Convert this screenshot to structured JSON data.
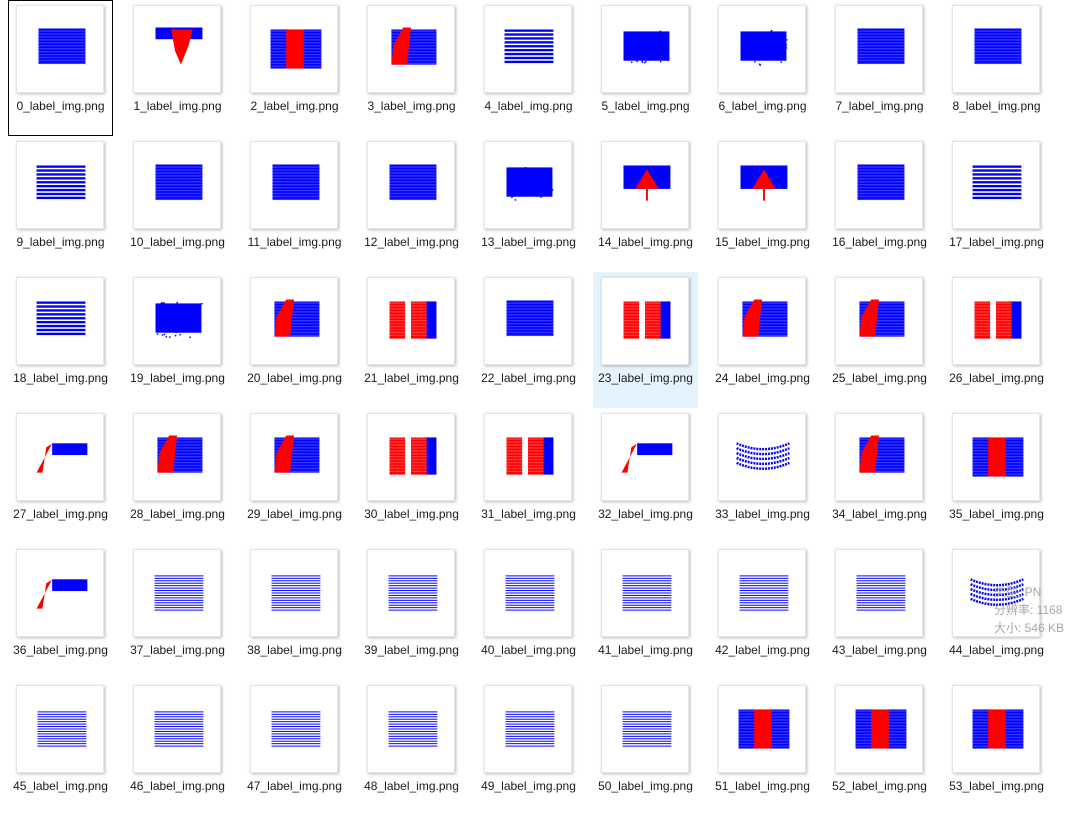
{
  "files": [
    {
      "name": "0_label_img.png",
      "pattern": "blue_rect",
      "selected": true
    },
    {
      "name": "1_label_img.png",
      "pattern": "red_v"
    },
    {
      "name": "2_label_img.png",
      "pattern": "red_center_band"
    },
    {
      "name": "3_label_img.png",
      "pattern": "red_left_band"
    },
    {
      "name": "4_label_img.png",
      "pattern": "blue_striped"
    },
    {
      "name": "5_label_img.png",
      "pattern": "blue_noisy"
    },
    {
      "name": "6_label_img.png",
      "pattern": "blue_noisy"
    },
    {
      "name": "7_label_img.png",
      "pattern": "blue_rect"
    },
    {
      "name": "8_label_img.png",
      "pattern": "blue_rect"
    },
    {
      "name": "9_label_img.png",
      "pattern": "blue_striped"
    },
    {
      "name": "10_label_img.png",
      "pattern": "blue_rect"
    },
    {
      "name": "11_label_img.png",
      "pattern": "blue_rect"
    },
    {
      "name": "12_label_img.png",
      "pattern": "blue_rect"
    },
    {
      "name": "13_label_img.png",
      "pattern": "blue_noisy"
    },
    {
      "name": "14_label_img.png",
      "pattern": "red_triangle"
    },
    {
      "name": "15_label_img.png",
      "pattern": "red_triangle"
    },
    {
      "name": "16_label_img.png",
      "pattern": "blue_rect"
    },
    {
      "name": "17_label_img.png",
      "pattern": "blue_striped"
    },
    {
      "name": "18_label_img.png",
      "pattern": "blue_striped"
    },
    {
      "name": "19_label_img.png",
      "pattern": "blue_noisy"
    },
    {
      "name": "20_label_img.png",
      "pattern": "red_left_band"
    },
    {
      "name": "21_label_img.png",
      "pattern": "red_wide"
    },
    {
      "name": "22_label_img.png",
      "pattern": "blue_rect"
    },
    {
      "name": "23_label_img.png",
      "pattern": "red_wide",
      "hover": true
    },
    {
      "name": "24_label_img.png",
      "pattern": "red_left_band"
    },
    {
      "name": "25_label_img.png",
      "pattern": "red_left_band"
    },
    {
      "name": "26_label_img.png",
      "pattern": "red_wide"
    },
    {
      "name": "27_label_img.png",
      "pattern": "red_slope"
    },
    {
      "name": "28_label_img.png",
      "pattern": "red_left_band"
    },
    {
      "name": "29_label_img.png",
      "pattern": "red_left_band"
    },
    {
      "name": "30_label_img.png",
      "pattern": "red_wide"
    },
    {
      "name": "31_label_img.png",
      "pattern": "red_wide"
    },
    {
      "name": "32_label_img.png",
      "pattern": "red_slope"
    },
    {
      "name": "33_label_img.png",
      "pattern": "blue_wave"
    },
    {
      "name": "34_label_img.png",
      "pattern": "red_left_band"
    },
    {
      "name": "35_label_img.png",
      "pattern": "red_center_band"
    },
    {
      "name": "36_label_img.png",
      "pattern": "red_slope"
    },
    {
      "name": "37_label_img.png",
      "pattern": "blue_lines"
    },
    {
      "name": "38_label_img.png",
      "pattern": "blue_lines"
    },
    {
      "name": "39_label_img.png",
      "pattern": "blue_lines"
    },
    {
      "name": "40_label_img.png",
      "pattern": "blue_lines"
    },
    {
      "name": "41_label_img.png",
      "pattern": "blue_lines"
    },
    {
      "name": "42_label_img.png",
      "pattern": "blue_lines"
    },
    {
      "name": "43_label_img.png",
      "pattern": "blue_lines"
    },
    {
      "name": "44_label_img.png",
      "pattern": "blue_wave"
    },
    {
      "name": "45_label_img.png",
      "pattern": "blue_lines"
    },
    {
      "name": "46_label_img.png",
      "pattern": "blue_lines"
    },
    {
      "name": "47_label_img.png",
      "pattern": "blue_lines"
    },
    {
      "name": "48_label_img.png",
      "pattern": "blue_lines"
    },
    {
      "name": "49_label_img.png",
      "pattern": "blue_lines"
    },
    {
      "name": "50_label_img.png",
      "pattern": "blue_lines"
    },
    {
      "name": "51_label_img.png",
      "pattern": "red_center_band"
    },
    {
      "name": "52_label_img.png",
      "pattern": "red_center_band"
    },
    {
      "name": "53_label_img.png",
      "pattern": "red_center_band"
    }
  ],
  "tooltip": {
    "type": "类型: PN",
    "resolution": "分辨率: 1168",
    "size": "大小: 546 KB"
  },
  "colors": {
    "blue": "#0000ff",
    "red": "#ff0000",
    "hover_bg": "#e5f3ff",
    "selected_border": "#000000"
  }
}
